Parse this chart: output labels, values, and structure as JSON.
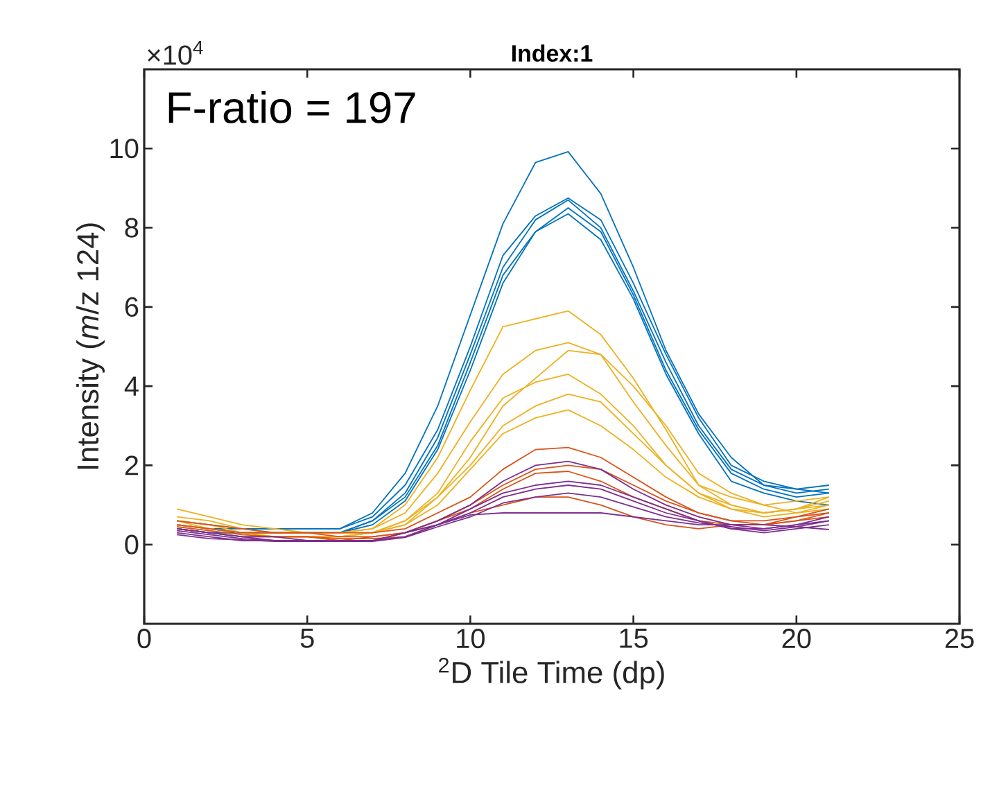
{
  "chart_data": {
    "type": "line",
    "title": "Index:1",
    "xlabel": "$^{2}$D Tile Time (dp)",
    "ylabel": "Intensity (*m*/z 124)",
    "annotations": [
      "F-ratio = 197",
      "×10$^{4}$"
    ],
    "x": [
      1,
      2,
      3,
      4,
      5,
      6,
      7,
      8,
      9,
      10,
      11,
      12,
      13,
      14,
      15,
      16,
      17,
      18,
      19,
      20,
      21
    ],
    "xlim": [
      0,
      25
    ],
    "xticks": [
      0,
      5,
      10,
      15,
      20,
      25
    ],
    "ylim": [
      -2,
      12
    ],
    "yticks": [
      0,
      2,
      4,
      6,
      8,
      10
    ],
    "grid": false,
    "series": [
      {
        "color": "#0072bd",
        "values": [
          0.5,
          0.4,
          0.4,
          0.4,
          0.4,
          0.4,
          0.8,
          1.8,
          3.5,
          5.8,
          8.1,
          9.65,
          9.92,
          8.86,
          7.0,
          4.9,
          3.3,
          2.2,
          1.5,
          1.4,
          1.3
        ]
      },
      {
        "color": "#0072bd",
        "values": [
          0.6,
          0.5,
          0.4,
          0.4,
          0.4,
          0.4,
          0.7,
          1.5,
          2.9,
          5.0,
          7.3,
          8.3,
          8.75,
          8.2,
          6.6,
          4.8,
          3.2,
          2.0,
          1.6,
          1.4,
          1.5
        ]
      },
      {
        "color": "#0072bd",
        "values": [
          0.5,
          0.4,
          0.3,
          0.3,
          0.3,
          0.3,
          0.6,
          1.3,
          2.7,
          4.8,
          7.0,
          8.2,
          8.7,
          8.0,
          6.4,
          4.6,
          3.0,
          1.9,
          1.5,
          1.3,
          1.4
        ]
      },
      {
        "color": "#0072bd",
        "values": [
          0.4,
          0.3,
          0.3,
          0.3,
          0.3,
          0.3,
          0.6,
          1.2,
          2.5,
          4.6,
          6.8,
          7.9,
          8.5,
          7.9,
          6.3,
          4.4,
          2.9,
          1.8,
          1.4,
          1.2,
          1.3
        ]
      },
      {
        "color": "#0072bd",
        "values": [
          0.4,
          0.3,
          0.3,
          0.3,
          0.3,
          0.3,
          0.5,
          1.1,
          2.4,
          4.4,
          6.6,
          7.9,
          8.35,
          7.7,
          6.2,
          4.3,
          2.8,
          1.6,
          1.3,
          1.1,
          1.0
        ]
      },
      {
        "color": "#edb120",
        "values": [
          0.9,
          0.7,
          0.5,
          0.4,
          0.3,
          0.3,
          0.4,
          1.0,
          2.2,
          3.9,
          5.5,
          5.7,
          5.9,
          5.3,
          4.2,
          2.9,
          1.5,
          1.0,
          0.8,
          0.9,
          1.2
        ]
      },
      {
        "color": "#edb120",
        "values": [
          0.7,
          0.6,
          0.4,
          0.3,
          0.3,
          0.3,
          0.4,
          0.8,
          1.8,
          3.1,
          4.3,
          4.9,
          5.1,
          4.8,
          3.6,
          2.5,
          1.5,
          1.2,
          1.0,
          1.1,
          1.2
        ]
      },
      {
        "color": "#edb120",
        "values": [
          0.6,
          0.5,
          0.3,
          0.3,
          0.3,
          0.3,
          0.3,
          0.6,
          1.2,
          2.2,
          3.5,
          4.2,
          4.9,
          4.8,
          4.0,
          3.0,
          1.8,
          1.3,
          1.0,
          0.8,
          0.9
        ]
      },
      {
        "color": "#edb120",
        "values": [
          0.6,
          0.4,
          0.3,
          0.2,
          0.2,
          0.2,
          0.3,
          0.6,
          1.3,
          2.6,
          3.7,
          4.1,
          4.3,
          3.8,
          3.0,
          2.0,
          1.3,
          0.9,
          0.7,
          0.8,
          1.0
        ]
      },
      {
        "color": "#edb120",
        "values": [
          0.5,
          0.4,
          0.3,
          0.2,
          0.2,
          0.2,
          0.3,
          0.5,
          1.2,
          2.0,
          3.0,
          3.5,
          3.8,
          3.6,
          2.8,
          2.0,
          1.3,
          1.0,
          0.8,
          0.9,
          1.1
        ]
      },
      {
        "color": "#edb120",
        "values": [
          0.5,
          0.4,
          0.3,
          0.2,
          0.2,
          0.2,
          0.3,
          0.5,
          1.0,
          1.9,
          2.8,
          3.2,
          3.4,
          3.0,
          2.4,
          1.7,
          1.2,
          0.9,
          0.8,
          0.9,
          1.0
        ]
      },
      {
        "color": "#d95319",
        "values": [
          0.6,
          0.5,
          0.4,
          0.3,
          0.3,
          0.3,
          0.3,
          0.4,
          0.8,
          1.2,
          1.9,
          2.4,
          2.45,
          2.2,
          1.7,
          1.2,
          0.8,
          0.6,
          0.5,
          0.7,
          0.8
        ]
      },
      {
        "color": "#d95319",
        "values": [
          0.5,
          0.4,
          0.3,
          0.3,
          0.3,
          0.2,
          0.2,
          0.3,
          0.6,
          1.0,
          1.5,
          1.9,
          2.0,
          1.9,
          1.5,
          1.1,
          0.8,
          0.6,
          0.6,
          0.7,
          0.9
        ]
      },
      {
        "color": "#d95319",
        "values": [
          0.4,
          0.3,
          0.2,
          0.2,
          0.2,
          0.1,
          0.2,
          0.3,
          0.6,
          0.9,
          1.4,
          1.8,
          1.85,
          1.6,
          1.2,
          0.9,
          0.6,
          0.5,
          0.5,
          0.6,
          0.8
        ]
      },
      {
        "color": "#d95319",
        "values": [
          0.45,
          0.35,
          0.25,
          0.2,
          0.2,
          0.15,
          0.15,
          0.2,
          0.5,
          0.8,
          1.0,
          1.2,
          1.2,
          1.0,
          0.7,
          0.5,
          0.4,
          0.5,
          0.5,
          0.6,
          0.7
        ]
      },
      {
        "color": "#7e2f8e",
        "values": [
          0.4,
          0.3,
          0.2,
          0.1,
          0.1,
          0.1,
          0.1,
          0.3,
          0.6,
          1.0,
          1.6,
          2.0,
          2.1,
          1.9,
          1.4,
          1.0,
          0.7,
          0.5,
          0.4,
          0.5,
          0.7
        ]
      },
      {
        "color": "#7e2f8e",
        "values": [
          0.4,
          0.3,
          0.2,
          0.2,
          0.1,
          0.1,
          0.1,
          0.3,
          0.5,
          0.9,
          1.3,
          1.5,
          1.6,
          1.5,
          1.2,
          0.9,
          0.6,
          0.4,
          0.4,
          0.5,
          0.6
        ]
      },
      {
        "color": "#7e2f8e",
        "values": [
          0.3,
          0.2,
          0.1,
          0.1,
          0.1,
          0.1,
          0.1,
          0.2,
          0.5,
          0.8,
          1.2,
          1.4,
          1.5,
          1.4,
          1.1,
          0.8,
          0.6,
          0.4,
          0.3,
          0.4,
          0.5
        ]
      },
      {
        "color": "#7e2f8e",
        "values": [
          0.25,
          0.15,
          0.12,
          0.08,
          0.08,
          0.08,
          0.08,
          0.18,
          0.45,
          0.7,
          1.05,
          1.2,
          1.3,
          1.2,
          0.95,
          0.7,
          0.55,
          0.45,
          0.35,
          0.45,
          0.6
        ]
      },
      {
        "color": "#7e2f8e",
        "values": [
          0.35,
          0.25,
          0.15,
          0.1,
          0.1,
          0.1,
          0.1,
          0.3,
          0.5,
          0.75,
          0.8,
          0.8,
          0.8,
          0.8,
          0.7,
          0.6,
          0.5,
          0.5,
          0.5,
          0.45,
          0.38
        ]
      }
    ]
  }
}
